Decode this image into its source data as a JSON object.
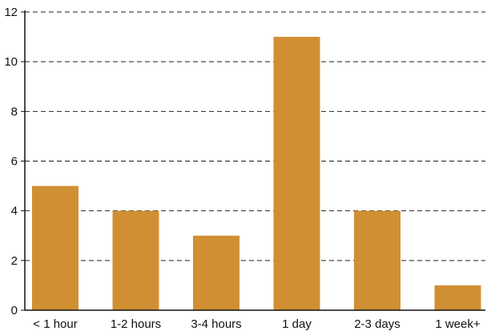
{
  "chart_data": {
    "type": "bar",
    "categories": [
      "< 1 hour",
      "1-2 hours",
      "3-4 hours",
      "1 day",
      "2-3 days",
      "1 week+"
    ],
    "values": [
      5,
      4,
      3,
      11,
      4,
      1
    ],
    "yticks": [
      0,
      2,
      4,
      6,
      8,
      10,
      12
    ],
    "ylim": [
      0,
      12
    ],
    "grid": true,
    "grid_style": "dashed",
    "bar_color": "#D18F33",
    "axis_color": "#111111",
    "title": "",
    "xlabel": "",
    "ylabel": ""
  }
}
